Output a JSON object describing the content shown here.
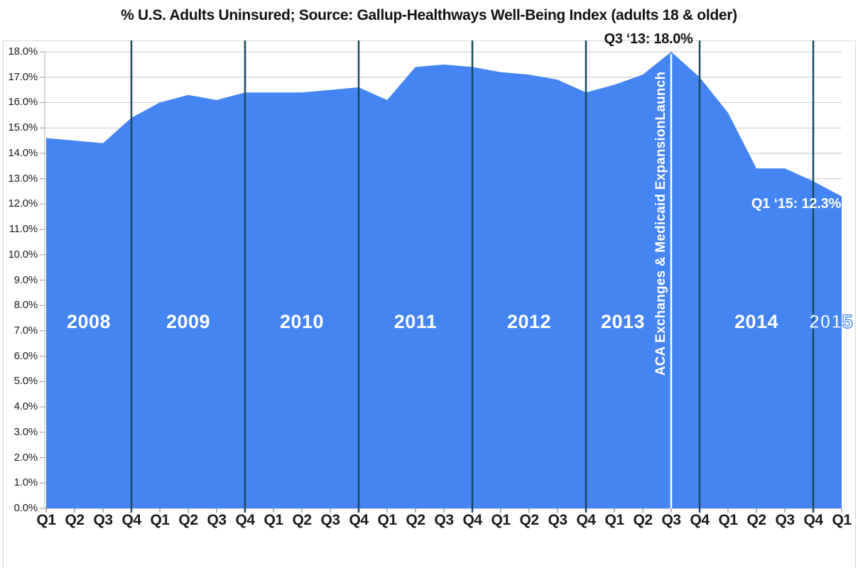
{
  "title": "% U.S. Adults Uninsured; Source: Gallup-Healthways Well-Being Index (adults 18 & older)",
  "annotations": {
    "peak_label": "Q3 ‘13: 18.0%",
    "latest_label": "Q1 ‘15: 12.3%",
    "event_line_label": "ACA Exchanges & Medicaid ExpansionLaunch"
  },
  "colors": {
    "area_fill": "#4484f3",
    "year_divider_line": "#174a5c",
    "event_line": "#ffffff",
    "gridline": "#c8c8c8",
    "tick": "#9a9a9a",
    "axis_text": "#1a1a1a"
  },
  "chart_data": {
    "type": "area",
    "title": "% U.S. Adults Uninsured; Source: Gallup-Healthways Well-Being Index (adults 18 & older)",
    "xlabel": "",
    "ylabel": "",
    "ylim": [
      0,
      18
    ],
    "ytick_step": 1,
    "grid": true,
    "legend": "none",
    "ytick_labels": [
      "0.0%",
      "1.0%",
      "2.0%",
      "3.0%",
      "4.0%",
      "5.0%",
      "6.0%",
      "7.0%",
      "8.0%",
      "9.0%",
      "10.0%",
      "11.0%",
      "12.0%",
      "13.0%",
      "14.0%",
      "15.0%",
      "16.0%",
      "17.0%",
      "18.0%"
    ],
    "quarter_labels": [
      "Q1",
      "Q2",
      "Q3",
      "Q4",
      "Q1",
      "Q2",
      "Q3",
      "Q4",
      "Q1",
      "Q2",
      "Q3",
      "Q4",
      "Q1",
      "Q2",
      "Q3",
      "Q4",
      "Q1",
      "Q2",
      "Q3",
      "Q4",
      "Q1",
      "Q2",
      "Q3",
      "Q4",
      "Q1",
      "Q2",
      "Q3",
      "Q4",
      "Q1"
    ],
    "year_labels": [
      "2008",
      "2009",
      "2010",
      "2011",
      "2012",
      "2013",
      "2014",
      "2015"
    ],
    "series": [
      {
        "name": "% U.S. adults uninsured",
        "x": [
          "2008 Q1",
          "2008 Q2",
          "2008 Q3",
          "2008 Q4",
          "2009 Q1",
          "2009 Q2",
          "2009 Q3",
          "2009 Q4",
          "2010 Q1",
          "2010 Q2",
          "2010 Q3",
          "2010 Q4",
          "2011 Q1",
          "2011 Q2",
          "2011 Q3",
          "2011 Q4",
          "2012 Q1",
          "2012 Q2",
          "2012 Q3",
          "2012 Q4",
          "2013 Q1",
          "2013 Q2",
          "2013 Q3",
          "2013 Q4",
          "2014 Q1",
          "2014 Q2",
          "2014 Q3",
          "2014 Q4",
          "2015 Q1"
        ],
        "values": [
          14.6,
          14.5,
          14.4,
          15.4,
          16.0,
          16.3,
          16.1,
          16.4,
          16.4,
          16.4,
          16.5,
          16.6,
          16.1,
          17.4,
          17.5,
          17.4,
          17.2,
          17.1,
          16.9,
          16.4,
          16.7,
          17.1,
          18.0,
          17.0,
          15.6,
          13.4,
          13.4,
          12.9,
          12.3
        ]
      }
    ],
    "annotations": [
      {
        "text": "Q3 ‘13: 18.0%",
        "point": "2013 Q3",
        "value": 18.0,
        "position": "above-peak"
      },
      {
        "text": "Q1 ‘15: 12.3%",
        "point": "2015 Q1",
        "value": 12.3,
        "position": "left-of-last-point"
      },
      {
        "text": "ACA Exchanges & Medicaid ExpansionLaunch",
        "type": "vline",
        "at": "2013 Q3",
        "color": "#ffffff"
      }
    ],
    "year_divider_positions": [
      "2008 Q4",
      "2009 Q4",
      "2010 Q4",
      "2011 Q4",
      "2012 Q4",
      "2013 Q4",
      "2014 Q4"
    ]
  }
}
